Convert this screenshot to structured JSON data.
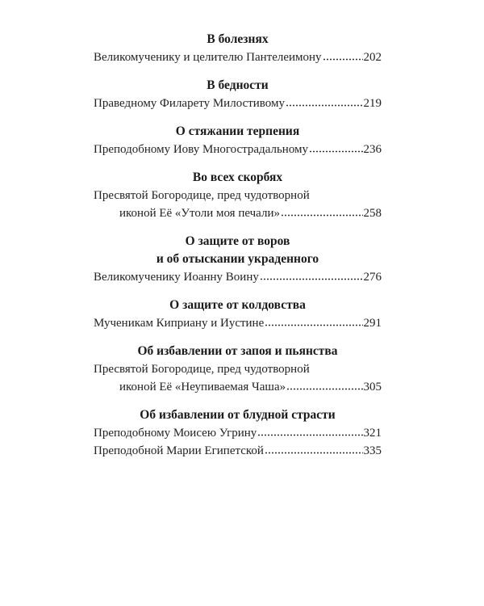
{
  "sections": [
    {
      "heading": [
        "В болезнях"
      ],
      "entries": [
        {
          "lines": [
            "Великомученику и целителю Пантелеимону"
          ],
          "page": "202"
        }
      ]
    },
    {
      "heading": [
        "В бедности"
      ],
      "entries": [
        {
          "lines": [
            "Праведному Филарету Милостивому"
          ],
          "page": "219"
        }
      ]
    },
    {
      "heading": [
        "О стяжании терпения"
      ],
      "entries": [
        {
          "lines": [
            "Преподобному Иову Многострадальному"
          ],
          "page": "236"
        }
      ]
    },
    {
      "heading": [
        "Во всех скорбях"
      ],
      "entries": [
        {
          "lines": [
            "Пресвятой Богородице, пред чудотворной",
            "иконой Её «Утоли моя печали»"
          ],
          "page": "258"
        }
      ]
    },
    {
      "heading": [
        "О защите от воров",
        "и об отыскании украденного"
      ],
      "entries": [
        {
          "lines": [
            "Великомученику Иоанну Воину"
          ],
          "page": "276"
        }
      ]
    },
    {
      "heading": [
        "О защите от колдовства"
      ],
      "entries": [
        {
          "lines": [
            "Мученикам Киприану и Иустине"
          ],
          "page": "291"
        }
      ]
    },
    {
      "heading": [
        "Об избавлении от запоя и пьянства"
      ],
      "entries": [
        {
          "lines": [
            "Пресвятой Богородице, пред чудотворной",
            "иконой Её «Неупиваемая Чаша»"
          ],
          "page": "305"
        }
      ]
    },
    {
      "heading": [
        "Об избавлении от блудной страсти"
      ],
      "entries": [
        {
          "lines": [
            "Преподобному Моисею Угрину"
          ],
          "page": "321"
        },
        {
          "lines": [
            "Преподобной Марии Египетской"
          ],
          "page": "335"
        }
      ]
    }
  ]
}
